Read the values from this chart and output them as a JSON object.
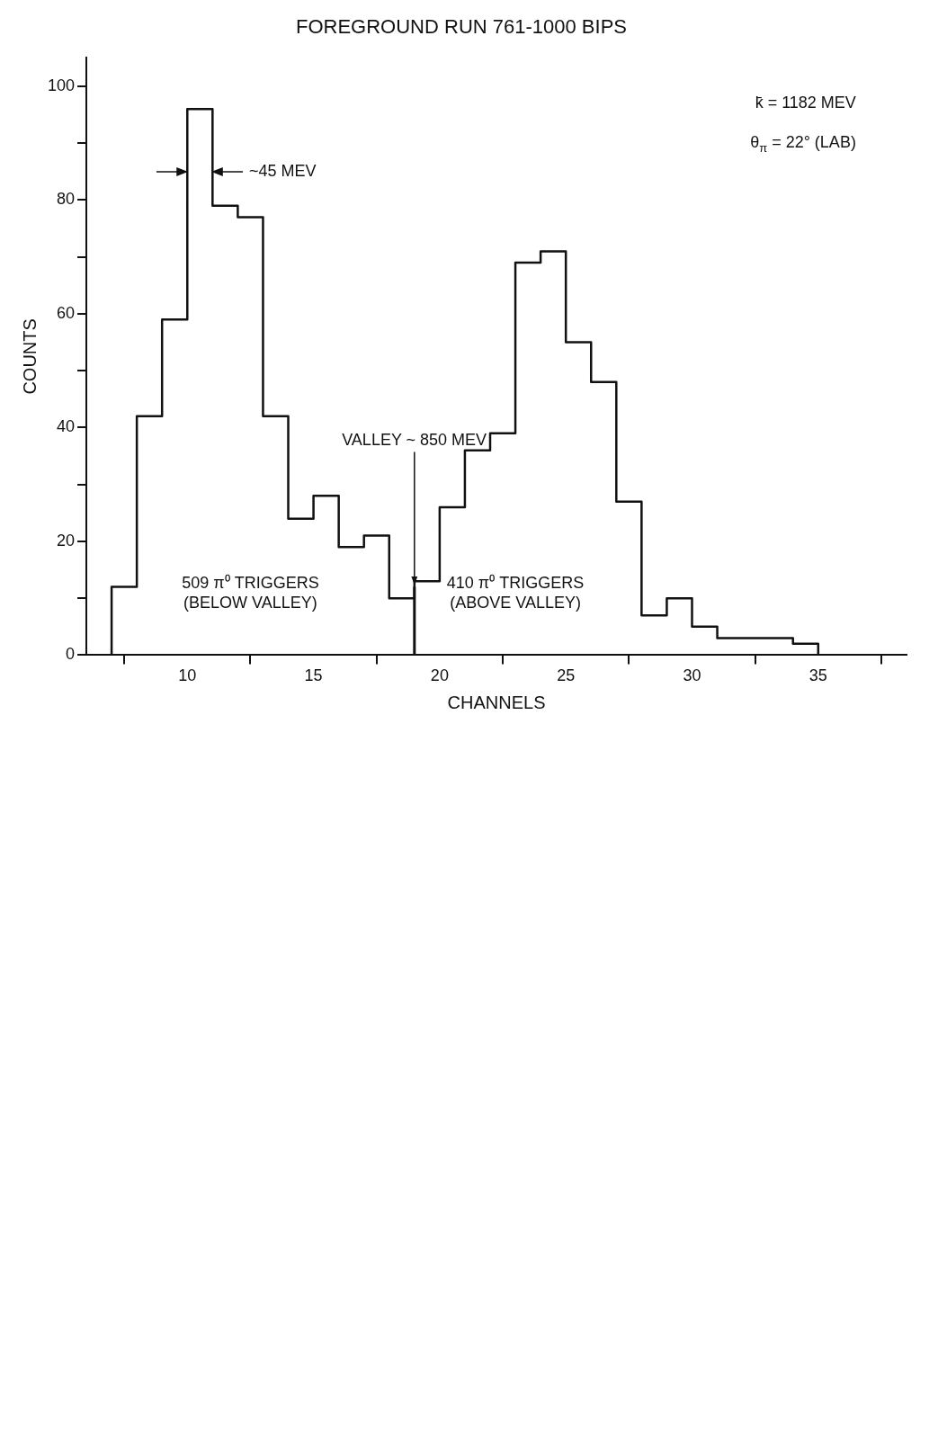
{
  "chart_data": {
    "type": "histogram",
    "title": "FOREGROUND RUN 761-1000 BIPS",
    "xlabel": "CHANNELS",
    "ylabel": "COUNTS",
    "bins": [
      7,
      8,
      9,
      10,
      11,
      12,
      13,
      14,
      15,
      16,
      17,
      18,
      19,
      20,
      21,
      22,
      23,
      24,
      25,
      26,
      27,
      28,
      29,
      30,
      31,
      32,
      33,
      34,
      35
    ],
    "values": [
      12,
      42,
      59,
      96,
      79,
      77,
      42,
      24,
      28,
      19,
      21,
      10,
      13,
      26,
      36,
      39,
      69,
      71,
      55,
      48,
      27,
      7,
      10,
      5,
      3,
      3,
      3,
      2
    ],
    "color": "#111111",
    "xlim": [
      6,
      38.5
    ],
    "xticks": [
      10,
      15,
      20,
      25,
      30,
      35
    ],
    "series": [
      {
        "type": "line",
        "x": [
          19,
          19
        ],
        "values": [
          0,
          12
        ],
        "color": "#111111"
      }
    ],
    "ylim": [
      0,
      105
    ],
    "yticks": [
      0,
      {
        "value": 10,
        "label": null
      },
      20,
      {
        "value": 30,
        "label": null
      },
      40,
      {
        "value": 50,
        "label": null
      },
      60,
      {
        "value": 70,
        "label": null
      },
      80,
      {
        "value": 90,
        "label": null
      },
      100
    ],
    "annotations": [
      "k̄ = 1182 MEV",
      "θ$_{π}$ = 22° (LAB)",
      "509 π⁰ TRIGGERS\n(BELOW VALLEY)",
      "410 π⁰ TRIGGERS\n(ABOVE VALLEY)",
      {
        "text": "VALLEY ~ 850 MEV",
        "x": 19,
        "y": 12
      },
      "~45 MEV"
    ],
    "legend": false
  }
}
